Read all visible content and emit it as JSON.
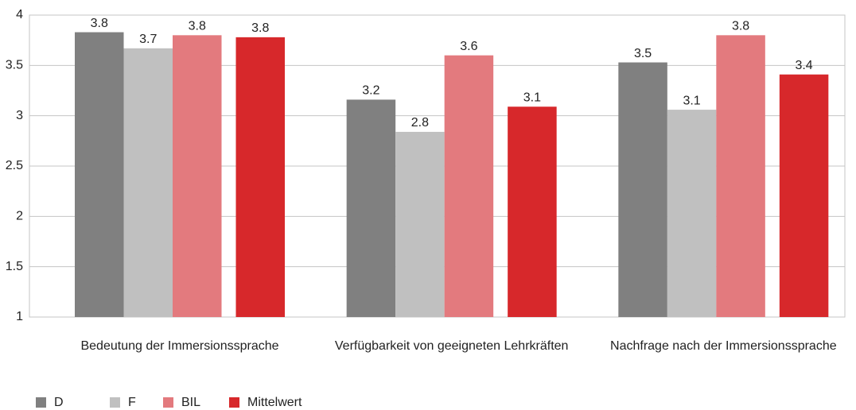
{
  "chart_data": {
    "type": "bar",
    "categories": [
      "Bedeutung der Immersionssprache",
      "Verfügbarkeit von geeigneten Lehrkräften",
      "Nachfrage nach der Immersionssprache"
    ],
    "series": [
      {
        "name": "D",
        "color": "#808080",
        "values": [
          3.83,
          3.16,
          3.53
        ],
        "value_labels": [
          "3.8",
          "3.2",
          "3.5"
        ]
      },
      {
        "name": "F",
        "color": "#c0c0c0",
        "values": [
          3.67,
          2.84,
          3.06
        ],
        "value_labels": [
          "3.7",
          "2.8",
          "3.1"
        ]
      },
      {
        "name": "BIL",
        "color": "#e37a7e",
        "values": [
          3.8,
          3.6,
          3.8
        ],
        "value_labels": [
          "3.8",
          "3.6",
          "3.8"
        ]
      },
      {
        "name": "Mittelwert",
        "color": "#d7282b",
        "values": [
          3.78,
          3.09,
          3.41
        ],
        "value_labels": [
          "3.8",
          "3.1",
          "3.4"
        ]
      }
    ],
    "ylim": [
      1,
      4
    ],
    "yticks": [
      1,
      1.5,
      2,
      2.5,
      3,
      3.5,
      4
    ],
    "grid": true,
    "legend": "bottom"
  }
}
